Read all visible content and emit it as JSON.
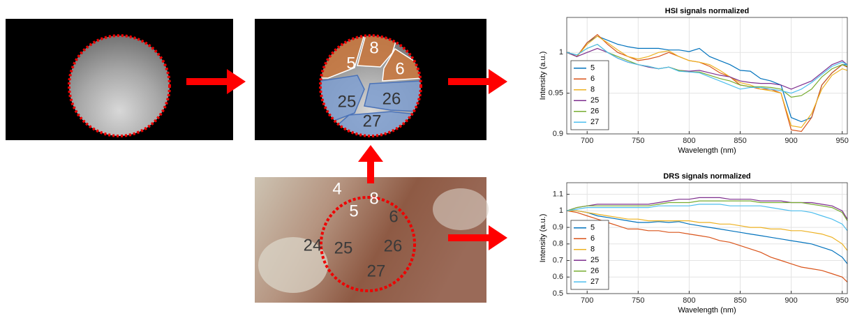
{
  "chart_data": [
    {
      "type": "line",
      "title": "HSI signals normalized",
      "xlabel": "Wavelength (nm)",
      "ylabel": "Intensity (a.u.)",
      "x": [
        680,
        690,
        700,
        710,
        720,
        730,
        740,
        750,
        760,
        770,
        780,
        790,
        800,
        810,
        820,
        830,
        840,
        850,
        860,
        870,
        880,
        890,
        900,
        910,
        920,
        930,
        940,
        950,
        955
      ],
      "xlim": [
        680,
        955
      ],
      "xticks": [
        700,
        750,
        800,
        850,
        900,
        950
      ],
      "ylim": [
        0.9,
        1.043
      ],
      "yticks": [
        0.9,
        0.95,
        1
      ],
      "grid": true,
      "legend": "lower left",
      "series": [
        {
          "name": "5",
          "color": "#0072bd",
          "values": [
            1.0,
            0.995,
            1.012,
            1.02,
            1.015,
            1.01,
            1.007,
            1.005,
            1.005,
            1.005,
            1.003,
            1.003,
            1.001,
            1.005,
            0.995,
            0.99,
            0.985,
            0.978,
            0.977,
            0.968,
            0.965,
            0.96,
            0.92,
            0.915,
            0.92,
            0.96,
            0.975,
            0.985,
            0.985
          ]
        },
        {
          "name": "6",
          "color": "#d95319",
          "values": [
            1.0,
            0.995,
            1.012,
            1.022,
            1.01,
            1.0,
            0.995,
            0.99,
            0.992,
            0.995,
            1.0,
            0.995,
            0.99,
            0.988,
            0.983,
            0.975,
            0.97,
            0.96,
            0.958,
            0.955,
            0.955,
            0.95,
            0.905,
            0.903,
            0.92,
            0.96,
            0.975,
            0.985,
            0.982
          ]
        },
        {
          "name": "8",
          "color": "#edb120",
          "values": [
            1.0,
            0.995,
            1.01,
            1.02,
            1.012,
            1.003,
            0.995,
            0.992,
            0.995,
            1.0,
            1.002,
            0.995,
            0.99,
            0.988,
            0.985,
            0.978,
            0.97,
            0.963,
            0.96,
            0.955,
            0.953,
            0.95,
            0.91,
            0.908,
            0.925,
            0.955,
            0.972,
            0.98,
            0.978
          ]
        },
        {
          "name": "25",
          "color": "#7e2f8e",
          "values": [
            1.0,
            0.995,
            1.0,
            1.005,
            1.0,
            0.993,
            0.988,
            0.985,
            0.982,
            0.98,
            0.982,
            0.978,
            0.977,
            0.978,
            0.975,
            0.972,
            0.97,
            0.965,
            0.963,
            0.962,
            0.962,
            0.96,
            0.955,
            0.96,
            0.965,
            0.975,
            0.985,
            0.99,
            0.985
          ]
        },
        {
          "name": "26",
          "color": "#77ac30",
          "values": [
            1.0,
            0.997,
            1.005,
            1.01,
            1.0,
            0.995,
            0.99,
            0.985,
            0.983,
            0.98,
            0.982,
            0.978,
            0.976,
            0.976,
            0.972,
            0.968,
            0.965,
            0.96,
            0.958,
            0.958,
            0.957,
            0.955,
            0.945,
            0.947,
            0.955,
            0.97,
            0.98,
            0.985,
            0.983
          ]
        },
        {
          "name": "27",
          "color": "#4dbeee",
          "values": [
            1.0,
            0.997,
            1.005,
            1.01,
            1.0,
            0.993,
            0.988,
            0.985,
            0.983,
            0.98,
            0.982,
            0.977,
            0.976,
            0.975,
            0.97,
            0.965,
            0.96,
            0.955,
            0.957,
            0.957,
            0.955,
            0.953,
            0.95,
            0.955,
            0.963,
            0.973,
            0.983,
            0.988,
            0.985
          ]
        }
      ]
    },
    {
      "type": "line",
      "title": "DRS signals normalized",
      "xlabel": "Wavelength (nm)",
      "ylabel": "Intensity (a.u.)",
      "x": [
        680,
        690,
        700,
        710,
        720,
        730,
        740,
        750,
        760,
        770,
        780,
        790,
        800,
        810,
        820,
        830,
        840,
        850,
        860,
        870,
        880,
        890,
        900,
        910,
        920,
        930,
        940,
        950,
        955
      ],
      "xlim": [
        680,
        955
      ],
      "xticks": [
        700,
        750,
        800,
        850,
        900,
        950
      ],
      "ylim": [
        0.5,
        1.17
      ],
      "yticks": [
        0.5,
        0.6,
        0.7,
        0.8,
        0.9,
        1,
        1.1
      ],
      "grid": true,
      "legend": "lower left",
      "series": [
        {
          "name": "5",
          "color": "#0072bd",
          "values": [
            1.0,
            1.0,
            0.99,
            0.97,
            0.96,
            0.95,
            0.94,
            0.93,
            0.93,
            0.935,
            0.93,
            0.935,
            0.92,
            0.91,
            0.9,
            0.89,
            0.88,
            0.87,
            0.86,
            0.85,
            0.84,
            0.83,
            0.82,
            0.81,
            0.8,
            0.78,
            0.76,
            0.72,
            0.68
          ]
        },
        {
          "name": "6",
          "color": "#d95319",
          "values": [
            1.0,
            0.99,
            0.97,
            0.95,
            0.93,
            0.91,
            0.89,
            0.89,
            0.88,
            0.88,
            0.87,
            0.87,
            0.86,
            0.85,
            0.84,
            0.82,
            0.81,
            0.79,
            0.77,
            0.75,
            0.72,
            0.7,
            0.68,
            0.66,
            0.65,
            0.64,
            0.62,
            0.6,
            0.57
          ]
        },
        {
          "name": "8",
          "color": "#edb120",
          "values": [
            1.0,
            1.0,
            0.99,
            0.98,
            0.97,
            0.96,
            0.95,
            0.95,
            0.94,
            0.94,
            0.94,
            0.94,
            0.94,
            0.93,
            0.93,
            0.92,
            0.92,
            0.91,
            0.9,
            0.9,
            0.89,
            0.89,
            0.88,
            0.88,
            0.87,
            0.86,
            0.84,
            0.8,
            0.76
          ]
        },
        {
          "name": "25",
          "color": "#7e2f8e",
          "values": [
            1.0,
            1.02,
            1.03,
            1.04,
            1.04,
            1.04,
            1.04,
            1.04,
            1.04,
            1.05,
            1.06,
            1.07,
            1.07,
            1.08,
            1.08,
            1.08,
            1.07,
            1.07,
            1.07,
            1.06,
            1.06,
            1.06,
            1.05,
            1.05,
            1.05,
            1.04,
            1.03,
            1.0,
            0.95
          ]
        },
        {
          "name": "26",
          "color": "#77ac30",
          "values": [
            1.0,
            1.02,
            1.03,
            1.03,
            1.03,
            1.03,
            1.03,
            1.03,
            1.03,
            1.04,
            1.05,
            1.05,
            1.05,
            1.06,
            1.06,
            1.06,
            1.06,
            1.06,
            1.06,
            1.05,
            1.05,
            1.05,
            1.05,
            1.05,
            1.04,
            1.03,
            1.02,
            0.99,
            0.94
          ]
        },
        {
          "name": "27",
          "color": "#4dbeee",
          "values": [
            1.0,
            1.01,
            1.02,
            1.02,
            1.02,
            1.02,
            1.02,
            1.02,
            1.02,
            1.03,
            1.03,
            1.03,
            1.03,
            1.04,
            1.04,
            1.04,
            1.03,
            1.03,
            1.03,
            1.03,
            1.02,
            1.01,
            1.0,
            1.0,
            0.99,
            0.97,
            0.95,
            0.92,
            0.88
          ]
        }
      ]
    }
  ],
  "images": {
    "segmented_labels": [
      "5",
      "8",
      "6",
      "25",
      "26",
      "27"
    ],
    "photo_labels": [
      "4",
      "8",
      "5",
      "6",
      "24",
      "25",
      "26",
      "27"
    ]
  }
}
